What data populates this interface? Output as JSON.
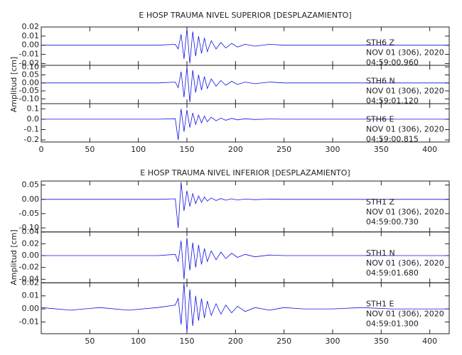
{
  "chart_data": [
    {
      "type": "line",
      "title": "E HOSP TRAUMA NIVEL SUPERIOR [DESPLAZAMIENTO]",
      "ylabel": "Amplitud [cm]",
      "xlim": [
        0,
        420
      ],
      "xticks": [
        0,
        50,
        100,
        150,
        200,
        250,
        300,
        350,
        400
      ],
      "x": [
        0,
        30,
        60,
        90,
        120,
        138,
        141,
        144,
        147,
        150,
        153,
        156,
        159,
        162,
        165,
        168,
        171,
        175,
        180,
        185,
        190,
        196,
        202,
        210,
        220,
        235,
        250,
        270,
        300,
        330,
        360,
        390,
        420
      ],
      "panels": [
        {
          "station": "STH6   Z",
          "date": "NOV 01 (306), 2020",
          "time": "04:59:00.960",
          "color": "#1010e0",
          "ylim": [
            -0.022,
            0.02
          ],
          "yticks": [
            0.02,
            0.01,
            {
              "value": 0,
              "label": "0.00"
            },
            -0.01,
            -0.02
          ],
          "values": [
            0,
            0,
            0,
            0,
            0,
            0.001,
            -0.004,
            0.012,
            -0.015,
            0.018,
            -0.02,
            0.015,
            -0.012,
            0.01,
            -0.009,
            0.008,
            -0.007,
            0.005,
            -0.004,
            0.003,
            -0.003,
            0.002,
            -0.002,
            0.001,
            -0.001,
            0.001,
            0,
            0,
            0,
            0,
            0,
            0,
            0
          ]
        },
        {
          "station": "STH6   N",
          "date": "NOV 01 (306), 2020",
          "time": "04:59:01.120",
          "color": "#1010e0",
          "ylim": [
            -0.13,
            0.11
          ],
          "yticks": [
            {
              "value": 0.1,
              "label": "0.10"
            },
            0.05,
            {
              "value": 0,
              "label": "0.00"
            },
            -0.05,
            {
              "value": -0.1,
              "label": "-0.10"
            }
          ],
          "values": [
            0,
            0,
            0,
            0,
            0,
            0.005,
            -0.03,
            0.07,
            -0.09,
            0.1,
            -0.12,
            0.08,
            -0.06,
            0.05,
            -0.045,
            0.04,
            -0.035,
            0.025,
            -0.02,
            0.015,
            -0.015,
            0.01,
            -0.01,
            0.005,
            -0.005,
            0.005,
            0,
            0,
            0,
            0,
            0,
            0,
            0
          ]
        },
        {
          "station": "STH6   E",
          "date": "NOV 01 (306), 2020",
          "time": "04:59:00.815",
          "color": "#1010e0",
          "ylim": [
            -0.22,
            0.15
          ],
          "yticks": [
            0.1,
            {
              "value": 0,
              "label": "0.0"
            },
            -0.1,
            -0.2
          ],
          "values": [
            0,
            0,
            0,
            0,
            0,
            0.005,
            -0.2,
            0.1,
            -0.12,
            0.09,
            -0.08,
            0.06,
            -0.05,
            0.04,
            -0.035,
            0.03,
            -0.025,
            0.02,
            -0.015,
            0.01,
            -0.01,
            0.008,
            -0.006,
            0.004,
            -0.003,
            0.002,
            0,
            0,
            0,
            0,
            0,
            0,
            0
          ]
        }
      ]
    },
    {
      "type": "line",
      "title": "E HOSP TRAUMA NIVEL INFERIOR [DESPLAZAMIENTO]",
      "ylabel": "Amplitud [cm]",
      "xlim": [
        0,
        420
      ],
      "xticks": [
        50,
        100,
        150,
        200,
        250,
        300,
        350,
        400
      ],
      "x": [
        0,
        30,
        60,
        90,
        120,
        138,
        141,
        144,
        147,
        150,
        153,
        156,
        159,
        162,
        165,
        168,
        171,
        175,
        180,
        185,
        190,
        196,
        202,
        210,
        220,
        235,
        250,
        270,
        300,
        330,
        360,
        390,
        420
      ],
      "panels": [
        {
          "station": "STH1   Z",
          "date": "NOV 01 (306), 2020",
          "time": "04:59:00.730",
          "color": "#1010e0",
          "ylim": [
            -0.114,
            0.064
          ],
          "yticks": [
            0.05,
            {
              "value": 0,
              "label": "0.00"
            },
            -0.05,
            {
              "value": -0.1,
              "label": "-0.10"
            }
          ],
          "values": [
            0,
            0,
            0,
            0,
            0,
            0.002,
            -0.1,
            0.06,
            -0.04,
            0.03,
            -0.025,
            0.02,
            -0.015,
            0.012,
            -0.01,
            0.008,
            -0.006,
            0.005,
            -0.004,
            0.003,
            -0.003,
            0.002,
            -0.002,
            0.001,
            -0.001,
            0.001,
            0,
            0,
            0,
            0,
            0,
            0,
            0
          ]
        },
        {
          "station": "STH1   N",
          "date": "NOV 01 (306), 2020",
          "time": "04:59:01.680",
          "color": "#1010e0",
          "ylim": [
            -0.046,
            0.04
          ],
          "yticks": [
            0.04,
            0.02,
            {
              "value": 0,
              "label": "0.00"
            },
            -0.02,
            -0.04
          ],
          "values": [
            0,
            0,
            0,
            0,
            0,
            0.002,
            -0.01,
            0.025,
            -0.04,
            0.03,
            -0.025,
            0.022,
            -0.02,
            0.018,
            -0.015,
            0.012,
            -0.01,
            0.008,
            -0.007,
            0.006,
            -0.005,
            0.004,
            -0.003,
            0.002,
            -0.002,
            0.001,
            0,
            0,
            0,
            0,
            0,
            0,
            0
          ]
        },
        {
          "station": "STH1   E",
          "date": "NOV 01 (306), 2020",
          "time": "04:59:01.300",
          "color": "#1010e0",
          "ylim": [
            -0.019,
            0.02
          ],
          "yticks": [
            0.02,
            0.01,
            {
              "value": 0,
              "label": "0.00"
            },
            -0.01
          ],
          "values": [
            0.001,
            -0.001,
            0.001,
            -0.001,
            0.001,
            0.003,
            0.008,
            -0.012,
            0.02,
            -0.018,
            0.015,
            -0.013,
            0.01,
            -0.009,
            0.008,
            -0.007,
            0.006,
            -0.005,
            0.004,
            -0.004,
            0.003,
            -0.003,
            0.002,
            -0.002,
            0.001,
            -0.001,
            0.001,
            0,
            0,
            0.001,
            0,
            0,
            0
          ]
        }
      ]
    }
  ]
}
